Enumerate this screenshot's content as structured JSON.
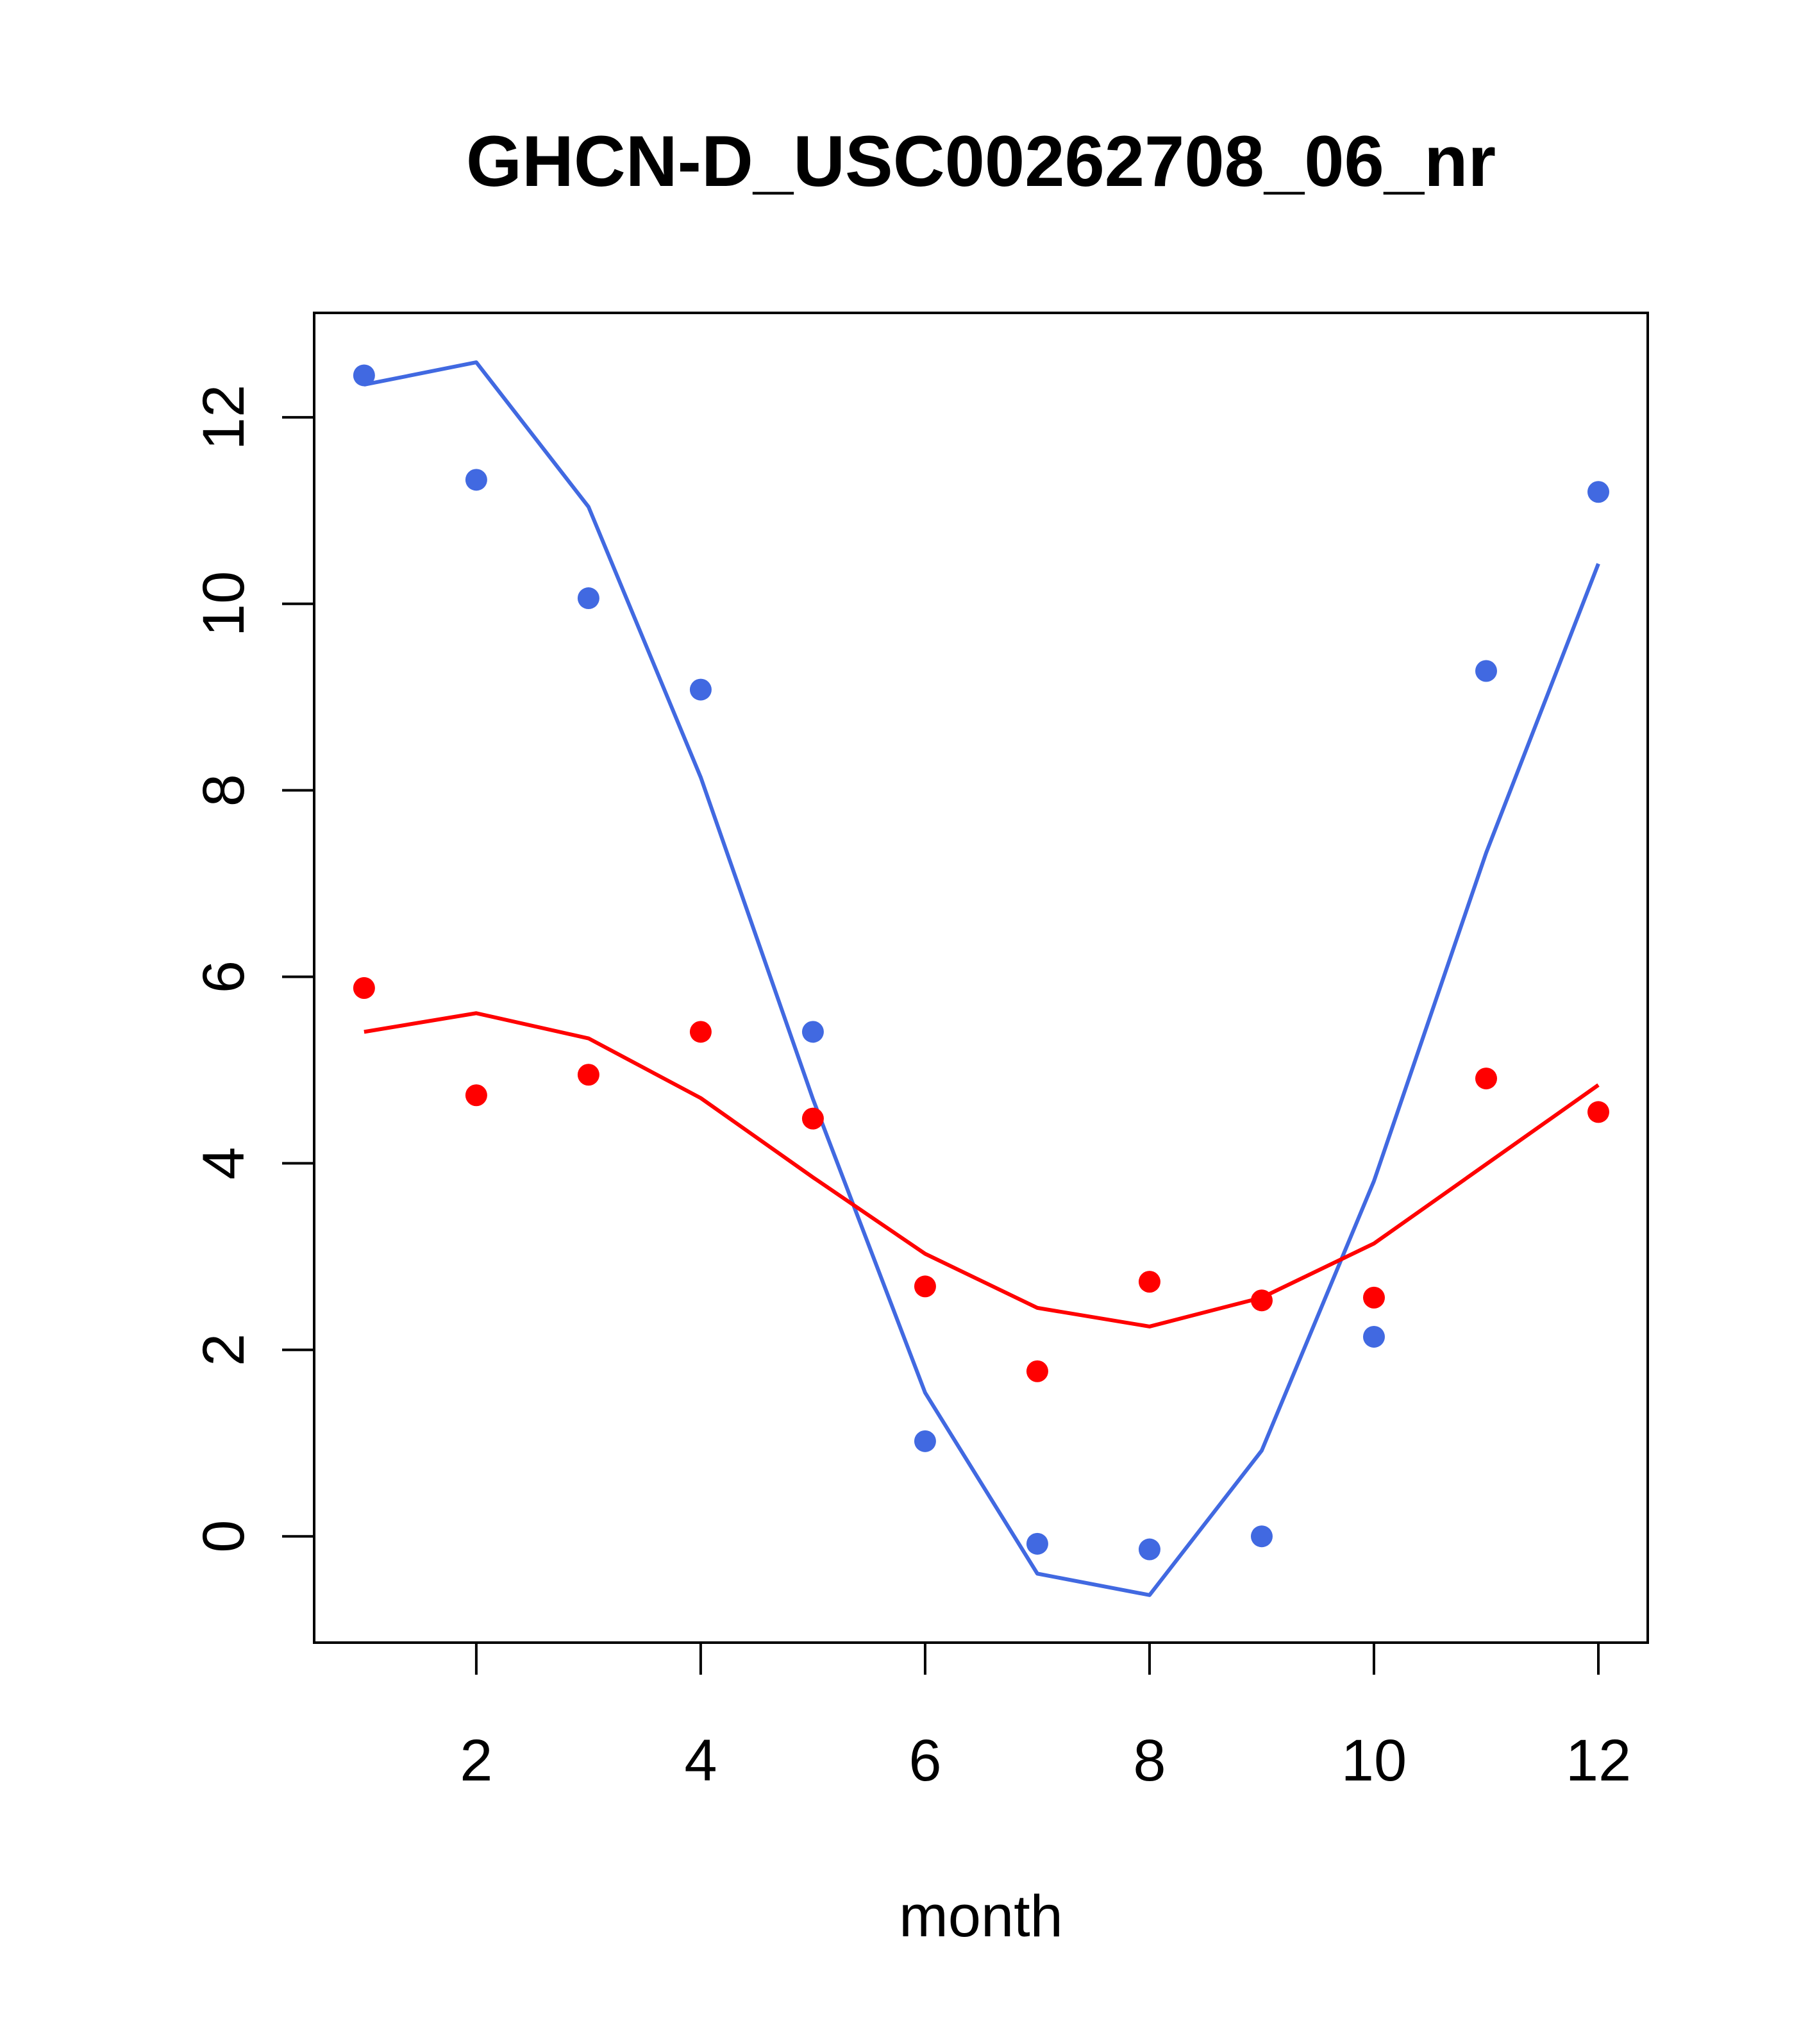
{
  "chart_data": {
    "type": "line",
    "title": "GHCN-D_USC00262708_06_nr",
    "xlabel": "month",
    "ylabel": "",
    "xlim": [
      0.555,
      12.44
    ],
    "ylim": [
      -1.14,
      13.12
    ],
    "x_ticks": [
      2,
      4,
      6,
      8,
      10,
      12
    ],
    "y_ticks": [
      0,
      2,
      4,
      6,
      8,
      10,
      12
    ],
    "x": [
      1,
      2,
      3,
      4,
      5,
      6,
      7,
      8,
      9,
      10,
      11,
      12
    ],
    "series": [
      {
        "name": "blue-points",
        "kind": "scatter",
        "color": "#4169E1",
        "values": [
          12.45,
          11.33,
          10.06,
          9.08,
          5.41,
          1.02,
          -0.08,
          -0.14,
          0.0,
          2.14,
          9.28,
          11.2
        ]
      },
      {
        "name": "blue-line",
        "kind": "line",
        "color": "#4169E1",
        "values": [
          12.35,
          12.59,
          11.04,
          8.14,
          4.69,
          1.54,
          -0.4,
          -0.63,
          0.92,
          3.81,
          7.33,
          10.43
        ]
      },
      {
        "name": "red-points",
        "kind": "scatter",
        "color": "#FF0000",
        "values": [
          5.88,
          4.73,
          4.95,
          5.41,
          4.48,
          2.68,
          1.77,
          2.73,
          2.53,
          2.56,
          4.91,
          4.55
        ]
      },
      {
        "name": "red-line",
        "kind": "line",
        "color": "#FF0000",
        "values": [
          5.41,
          5.61,
          5.34,
          4.7,
          3.85,
          3.03,
          2.45,
          2.25,
          2.56,
          3.14,
          3.99,
          4.84
        ]
      }
    ],
    "grid": false,
    "legend": "none"
  }
}
